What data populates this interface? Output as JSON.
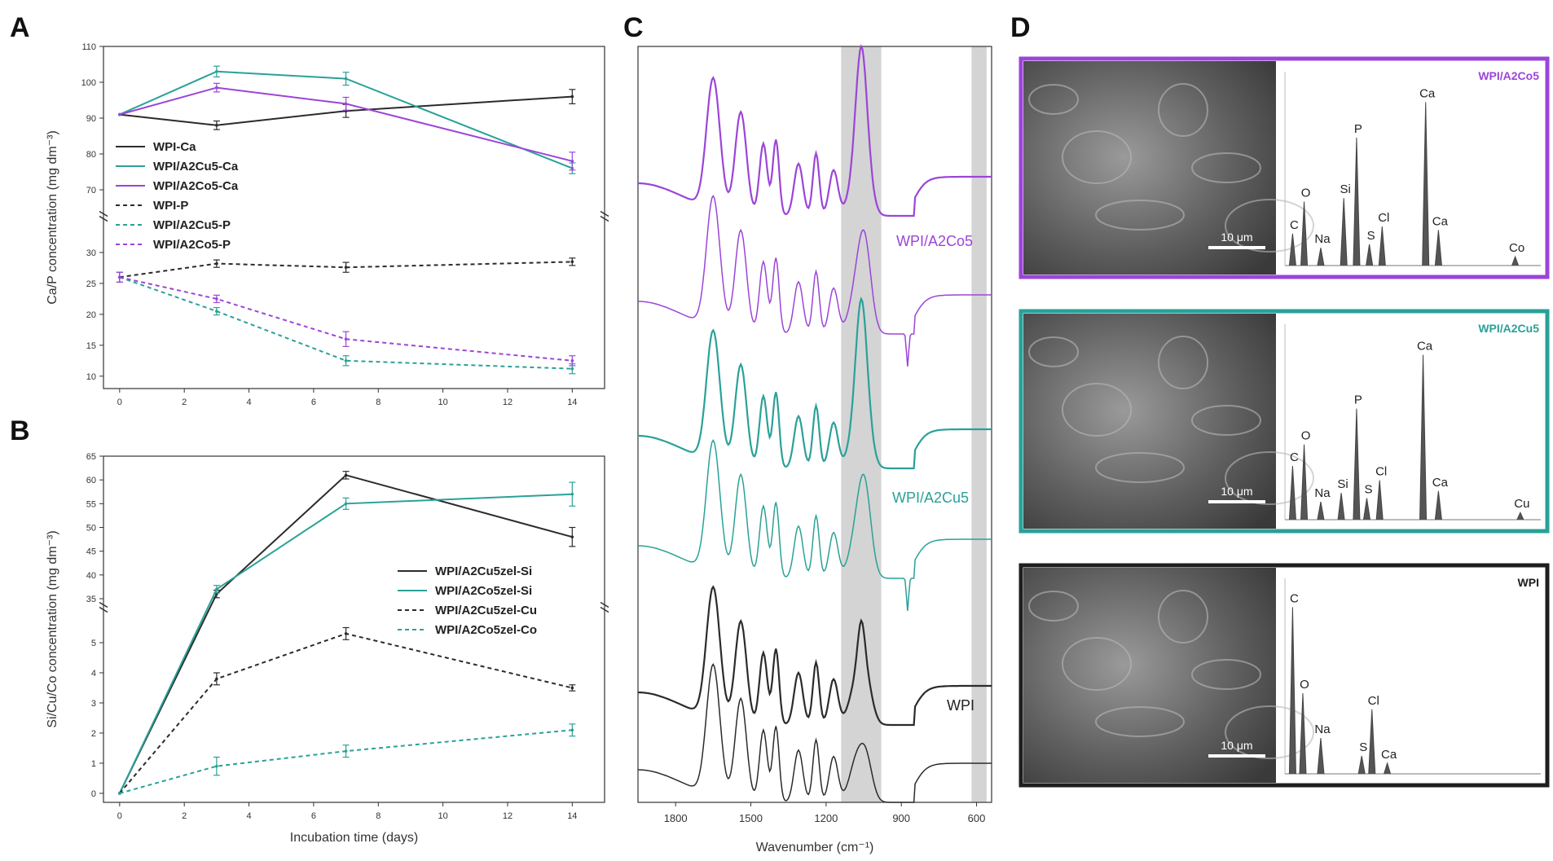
{
  "panels": {
    "A": "A",
    "B": "B",
    "C": "C",
    "D": "D"
  },
  "colors": {
    "black": "#2b2b2b",
    "teal": "#2aa198",
    "purple": "#9b45d8",
    "shade": "#d4d4d4"
  },
  "chart_data": [
    {
      "id": "A",
      "type": "line",
      "xlabel": "",
      "ylabel": "Ca/P concentration (mg dm⁻³)",
      "x_ticks": [
        "0",
        "2",
        "4",
        "6",
        "8",
        "10",
        "12",
        "14"
      ],
      "y_ticks_upper": [
        "70",
        "80",
        "90",
        "100",
        "110"
      ],
      "y_ticks_lower": [
        "10",
        "15",
        "20",
        "25",
        "30"
      ],
      "xlim": [
        -0.5,
        15
      ],
      "ylim_upper": [
        65,
        110
      ],
      "ylim_lower": [
        8,
        35
      ],
      "axis_break": true,
      "legend_position": "middle-left",
      "series": [
        {
          "name": "WPI-Ca",
          "color": "#2b2b2b",
          "dashed": false,
          "x": [
            0,
            3,
            7,
            14
          ],
          "y": [
            91,
            88,
            92,
            96
          ],
          "err": [
            0,
            1.2,
            1.8,
            2
          ]
        },
        {
          "name": "WPI/A2Cu5-Ca",
          "color": "#2aa198",
          "dashed": false,
          "x": [
            0,
            3,
            7,
            14
          ],
          "y": [
            91,
            103,
            101,
            76
          ],
          "err": [
            0,
            1.5,
            1.8,
            1.5
          ]
        },
        {
          "name": "WPI/A2Co5-Ca",
          "color": "#9b45d8",
          "dashed": false,
          "x": [
            0,
            3,
            7,
            14
          ],
          "y": [
            91,
            98.5,
            94,
            78
          ],
          "err": [
            0,
            1.2,
            1.8,
            2.5
          ]
        },
        {
          "name": "WPI-P",
          "color": "#2b2b2b",
          "dashed": true,
          "x": [
            0,
            3,
            7,
            14
          ],
          "y": [
            26,
            28.2,
            27.6,
            28.5
          ],
          "err": [
            0.8,
            0.6,
            0.8,
            0.6
          ]
        },
        {
          "name": "WPI/A2Cu5-P",
          "color": "#2aa198",
          "dashed": true,
          "x": [
            0,
            3,
            7,
            14
          ],
          "y": [
            26,
            20.5,
            12.5,
            11.2
          ],
          "err": [
            0.8,
            0.6,
            0.8,
            0.8
          ]
        },
        {
          "name": "WPI/A2Co5-P",
          "color": "#9b45d8",
          "dashed": true,
          "x": [
            0,
            3,
            7,
            14
          ],
          "y": [
            26,
            22.5,
            16,
            12.5
          ],
          "err": [
            0.8,
            0.6,
            1.2,
            0.8
          ]
        }
      ]
    },
    {
      "id": "B",
      "type": "line",
      "xlabel": "Incubation time (days)",
      "ylabel": "Si/Cu/Co concentration (mg dm⁻³)",
      "x_ticks": [
        "0",
        "2",
        "4",
        "6",
        "8",
        "10",
        "12",
        "14"
      ],
      "y_ticks_upper": [
        "35",
        "40",
        "45",
        "50",
        "55",
        "60",
        "65"
      ],
      "y_ticks_lower": [
        "0",
        "1",
        "2",
        "3",
        "4",
        "5"
      ],
      "xlim": [
        -0.5,
        15
      ],
      "ylim_upper": [
        35,
        65
      ],
      "ylim_lower": [
        -0.3,
        6
      ],
      "axis_break": true,
      "legend_position": "middle-right",
      "series": [
        {
          "name": "WPI/A2Cu5zel-Si",
          "color": "#2b2b2b",
          "dashed": false,
          "x": [
            0,
            3,
            7,
            14
          ],
          "y": [
            0,
            36,
            61,
            48
          ],
          "err": [
            0,
            0.8,
            0.8,
            2
          ]
        },
        {
          "name": "WPI/A2Co5zel-Si",
          "color": "#2aa198",
          "dashed": false,
          "x": [
            0,
            3,
            7,
            14
          ],
          "y": [
            0,
            37,
            55,
            57
          ],
          "err": [
            0,
            0.8,
            1.2,
            2.5
          ]
        },
        {
          "name": "WPI/A2Cu5zel-Cu",
          "color": "#2b2b2b",
          "dashed": true,
          "x": [
            0,
            3,
            7,
            14
          ],
          "y": [
            0,
            3.8,
            5.3,
            3.5
          ],
          "err": [
            0,
            0.2,
            0.2,
            0.1
          ]
        },
        {
          "name": "WPI/A2Co5zel-Co",
          "color": "#2aa198",
          "dashed": true,
          "x": [
            0,
            3,
            7,
            14
          ],
          "y": [
            0,
            0.9,
            1.4,
            2.1
          ],
          "err": [
            0,
            0.3,
            0.2,
            0.2
          ]
        }
      ]
    },
    {
      "id": "C",
      "type": "line",
      "xlabel": "Wavenumber (cm⁻¹)",
      "x_ticks": [
        "1800",
        "1500",
        "1200",
        "900",
        "600"
      ],
      "xlim": [
        1950,
        540
      ],
      "x_reversed": true,
      "shaded_regions": [
        [
          1140,
          980
        ],
        [
          620,
          560
        ]
      ],
      "labels": [
        "WPI/A2Co5",
        "WPI/A2Cu5",
        "WPI"
      ],
      "series": [
        {
          "name": "WPI/A2Co5",
          "color": "#9b45d8"
        },
        {
          "name": "WPI/A2Cu5",
          "color": "#2aa198"
        },
        {
          "name": "WPI",
          "color": "#2b2b2b"
        }
      ]
    }
  ],
  "eds_panels": [
    {
      "sample": "WPI/A2Co5",
      "color": "#9b45d8",
      "scale_bar": "10 μm",
      "peaks": [
        {
          "label": "C",
          "x": 0.03,
          "h": 0.18
        },
        {
          "label": "O",
          "x": 0.075,
          "h": 0.36
        },
        {
          "label": "Na",
          "x": 0.14,
          "h": 0.1
        },
        {
          "label": "Si",
          "x": 0.23,
          "h": 0.38
        },
        {
          "label": "P",
          "x": 0.28,
          "h": 0.72
        },
        {
          "label": "S",
          "x": 0.33,
          "h": 0.12
        },
        {
          "label": "Cl",
          "x": 0.38,
          "h": 0.22
        },
        {
          "label": "Ca",
          "x": 0.55,
          "h": 0.92
        },
        {
          "label": "Ca",
          "x": 0.6,
          "h": 0.2
        },
        {
          "label": "Co",
          "x": 0.9,
          "h": 0.05
        }
      ]
    },
    {
      "sample": "WPI/A2Cu5",
      "color": "#2aa198",
      "scale_bar": "10 μm",
      "peaks": [
        {
          "label": "C",
          "x": 0.03,
          "h": 0.3
        },
        {
          "label": "O",
          "x": 0.075,
          "h": 0.42
        },
        {
          "label": "Na",
          "x": 0.14,
          "h": 0.1
        },
        {
          "label": "Si",
          "x": 0.22,
          "h": 0.15
        },
        {
          "label": "P",
          "x": 0.28,
          "h": 0.62
        },
        {
          "label": "S",
          "x": 0.32,
          "h": 0.12
        },
        {
          "label": "Cl",
          "x": 0.37,
          "h": 0.22
        },
        {
          "label": "Ca",
          "x": 0.54,
          "h": 0.92
        },
        {
          "label": "Ca",
          "x": 0.6,
          "h": 0.16
        },
        {
          "label": "Cu",
          "x": 0.92,
          "h": 0.04
        }
      ]
    },
    {
      "sample": "WPI",
      "color": "#1e1e1e",
      "scale_bar": "10 μm",
      "peaks": [
        {
          "label": "C",
          "x": 0.03,
          "h": 0.93
        },
        {
          "label": "O",
          "x": 0.07,
          "h": 0.45
        },
        {
          "label": "Na",
          "x": 0.14,
          "h": 0.2
        },
        {
          "label": "S",
          "x": 0.3,
          "h": 0.1
        },
        {
          "label": "Cl",
          "x": 0.34,
          "h": 0.36
        },
        {
          "label": "Ca",
          "x": 0.4,
          "h": 0.06
        }
      ]
    }
  ]
}
